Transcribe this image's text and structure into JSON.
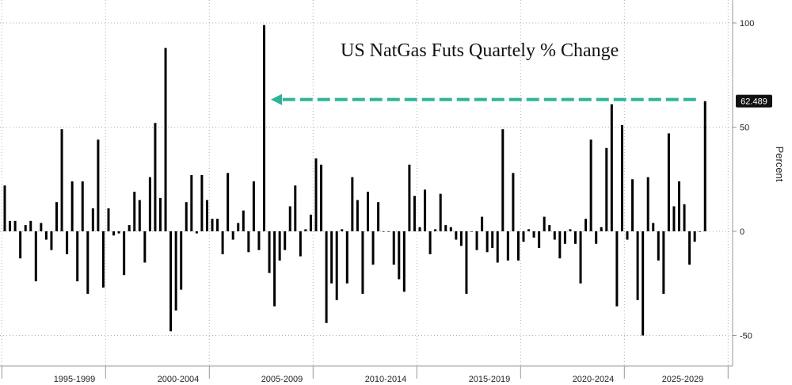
{
  "chart_data": {
    "type": "bar",
    "title": "US NatGas Futs Quartely % Change",
    "xlabel": "",
    "ylabel": "Percent",
    "ylim": [
      -62,
      110
    ],
    "y_ticks": [
      100,
      50,
      0,
      -50
    ],
    "x_period_labels": [
      "1995-1999",
      "2000-2004",
      "2005-2009",
      "2010-2014",
      "2015-2019",
      "2020-2024",
      "2025-2029"
    ],
    "x_start": "1994-Q1",
    "grid": "dotted",
    "last_value_label": "62.489",
    "annotation": "dashed teal arrow pointing left from the latest bar to the 2005 spike",
    "colors": {
      "bars": "#000000",
      "arrow": "#2db39a",
      "badge": "#111111"
    },
    "series": [
      {
        "values": [
          22,
          5,
          5,
          -13,
          3,
          5,
          -24,
          4,
          -4,
          -9,
          14,
          49,
          -11,
          24,
          -24,
          24,
          -30,
          11,
          44,
          -27,
          11,
          -2,
          -1,
          -21,
          3,
          19,
          15,
          -15,
          26,
          52,
          16,
          88,
          -48,
          -38,
          -28,
          14,
          27,
          -1,
          27,
          15,
          6,
          6,
          -11,
          28,
          -4,
          4,
          10,
          -10,
          24,
          -9,
          99,
          -20,
          -36,
          -14,
          -9,
          12,
          22,
          -12,
          1,
          8,
          35,
          32,
          -44,
          -25,
          -33,
          1,
          -25,
          26,
          15,
          -30,
          19,
          -16,
          14,
          0,
          0,
          -16,
          -23,
          -29,
          32,
          17,
          2,
          20,
          -11,
          1,
          18,
          3,
          2,
          -4,
          -7,
          -30,
          0,
          -9,
          7,
          -10,
          -8,
          -15,
          49,
          -14,
          28,
          -14,
          -5,
          1,
          -3,
          -8,
          7,
          3,
          -4,
          -13,
          -6,
          1,
          -6,
          -25,
          6,
          44,
          -6,
          2,
          40,
          61,
          -36,
          51,
          -4,
          25,
          -33,
          -50,
          26,
          4,
          -14,
          -30,
          47,
          12,
          24,
          13,
          -16,
          -5,
          0,
          62.489
        ]
      }
    ]
  }
}
